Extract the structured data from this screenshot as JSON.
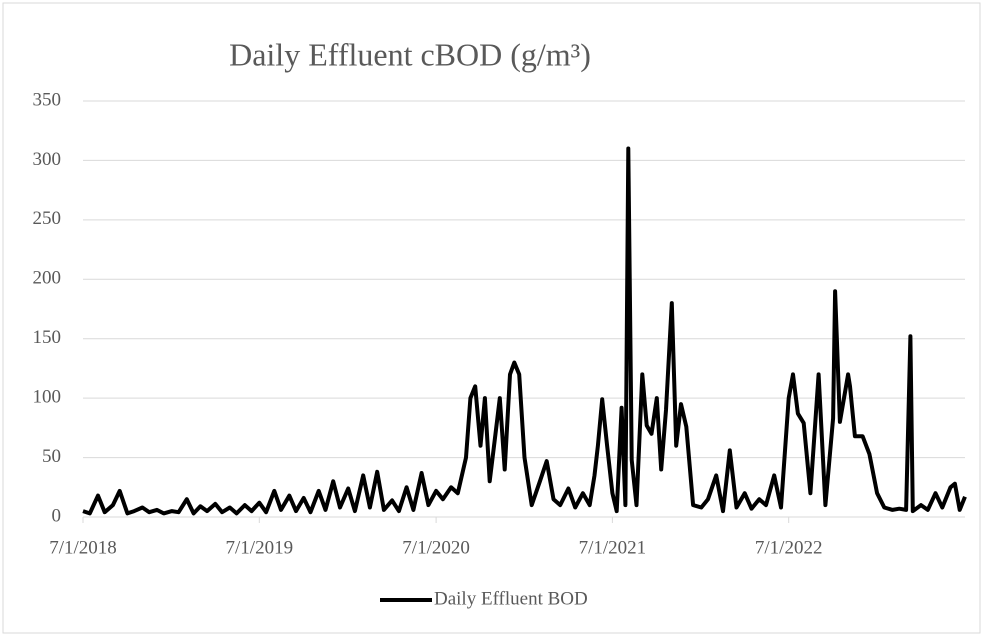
{
  "chart_data": {
    "type": "line",
    "title": "Daily Effluent cBOD (g/m³)",
    "x": [
      "7/1/2018",
      "7/15/2018",
      "8/1/2018",
      "8/15/2018",
      "9/1/2018",
      "9/15/2018",
      "10/1/2018",
      "10/15/2018",
      "11/1/2018",
      "11/15/2018",
      "12/1/2018",
      "12/15/2018",
      "1/1/2019",
      "1/15/2019",
      "2/1/2019",
      "2/15/2019",
      "3/1/2019",
      "3/15/2019",
      "4/1/2019",
      "4/15/2019",
      "5/1/2019",
      "5/15/2019",
      "6/1/2019",
      "6/15/2019",
      "7/1/2019",
      "7/15/2019",
      "8/1/2019",
      "8/15/2019",
      "9/1/2019",
      "9/15/2019",
      "10/1/2019",
      "10/15/2019",
      "11/1/2019",
      "11/15/2019",
      "12/1/2019",
      "12/15/2019",
      "1/1/2020",
      "1/15/2020",
      "2/1/2020",
      "2/15/2020",
      "3/1/2020",
      "3/15/2020",
      "4/1/2020",
      "4/15/2020",
      "5/1/2020",
      "5/15/2020",
      "6/1/2020",
      "6/15/2020",
      "7/1/2020",
      "7/15/2020",
      "8/1/2020",
      "8/15/2020",
      "9/1/2020",
      "9/10/2020",
      "9/20/2020",
      "10/1/2020",
      "10/10/2020",
      "10/20/2020",
      "11/1/2020",
      "11/10/2020",
      "11/20/2020",
      "12/1/2020",
      "12/10/2020",
      "12/20/2020",
      "12/31/2020",
      "1/15/2021",
      "2/1/2021",
      "2/15/2021",
      "3/1/2021",
      "3/15/2021",
      "4/1/2021",
      "4/15/2021",
      "5/1/2021",
      "5/15/2021",
      "5/25/2021",
      "6/1/2021",
      "6/10/2021",
      "6/20/2021",
      "7/1/2021",
      "7/10/2021",
      "7/20/2021",
      "7/28/2021",
      "8/3/2021",
      "8/10/2021",
      "8/20/2021",
      "9/1/2021",
      "9/10/2021",
      "9/20/2021",
      "10/1/2021",
      "10/10/2021",
      "10/20/2021",
      "11/1/2021",
      "11/10/2021",
      "11/20/2021",
      "12/1/2021",
      "12/15/2021",
      "1/1/2022",
      "1/15/2022",
      "2/1/2022",
      "2/15/2022",
      "3/1/2022",
      "3/15/2022",
      "4/1/2022",
      "4/15/2022",
      "5/1/2022",
      "5/15/2022",
      "6/1/2022",
      "6/15/2022",
      "7/1/2022",
      "7/10/2022",
      "7/20/2022",
      "8/1/2022",
      "8/15/2022",
      "9/1/2022",
      "9/15/2022",
      "10/1/2022",
      "10/5/2022",
      "10/15/2022",
      "11/1/2022",
      "11/5/2022",
      "11/15/2022",
      "12/1/2022",
      "12/15/2022",
      "12/31/2022",
      "1/15/2023",
      "2/1/2023",
      "2/15/2023",
      "3/1/2023",
      "3/10/2023",
      "3/15/2023",
      "4/1/2023",
      "4/15/2023",
      "5/1/2023",
      "5/15/2023",
      "6/1/2023",
      "6/10/2023",
      "6/20/2023",
      "7/1/2023"
    ],
    "series": [
      {
        "name": "Daily Effluent BOD",
        "color": "#000000",
        "values": [
          5,
          3,
          18,
          4,
          10,
          22,
          3,
          5,
          8,
          4,
          6,
          3,
          5,
          4,
          15,
          3,
          9,
          5,
          11,
          4,
          8,
          3,
          10,
          5,
          12,
          4,
          22,
          6,
          18,
          5,
          16,
          4,
          22,
          6,
          30,
          8,
          24,
          5,
          35,
          8,
          38,
          6,
          14,
          5,
          25,
          6,
          37,
          10,
          22,
          15,
          25,
          20,
          50,
          100,
          110,
          60,
          100,
          30,
          70,
          100,
          40,
          120,
          130,
          120,
          50,
          10,
          30,
          47,
          15,
          10,
          24,
          8,
          20,
          10,
          35,
          60,
          99,
          60,
          20,
          5,
          92,
          10,
          310,
          48,
          10,
          120,
          77,
          70,
          100,
          40,
          90,
          180,
          60,
          95,
          76,
          10,
          8,
          15,
          35,
          5,
          56,
          8,
          20,
          7,
          15,
          10,
          35,
          8,
          100,
          120,
          87,
          79,
          20,
          120,
          10,
          83,
          190,
          80,
          120,
          110,
          68,
          68,
          53,
          20,
          8,
          6,
          7,
          6,
          152,
          5,
          10,
          6,
          20,
          8,
          25,
          28,
          6,
          17
        ]
      }
    ],
    "xlim": [
      "7/1/2018",
      "7/1/2023"
    ],
    "xticks": [
      "7/1/2018",
      "7/1/2019",
      "7/1/2020",
      "7/1/2021",
      "7/1/2022"
    ],
    "ylim": [
      0,
      350
    ],
    "yticks": [
      0,
      50,
      100,
      150,
      200,
      250,
      300,
      350
    ],
    "grid": true,
    "legend": "bottom"
  }
}
